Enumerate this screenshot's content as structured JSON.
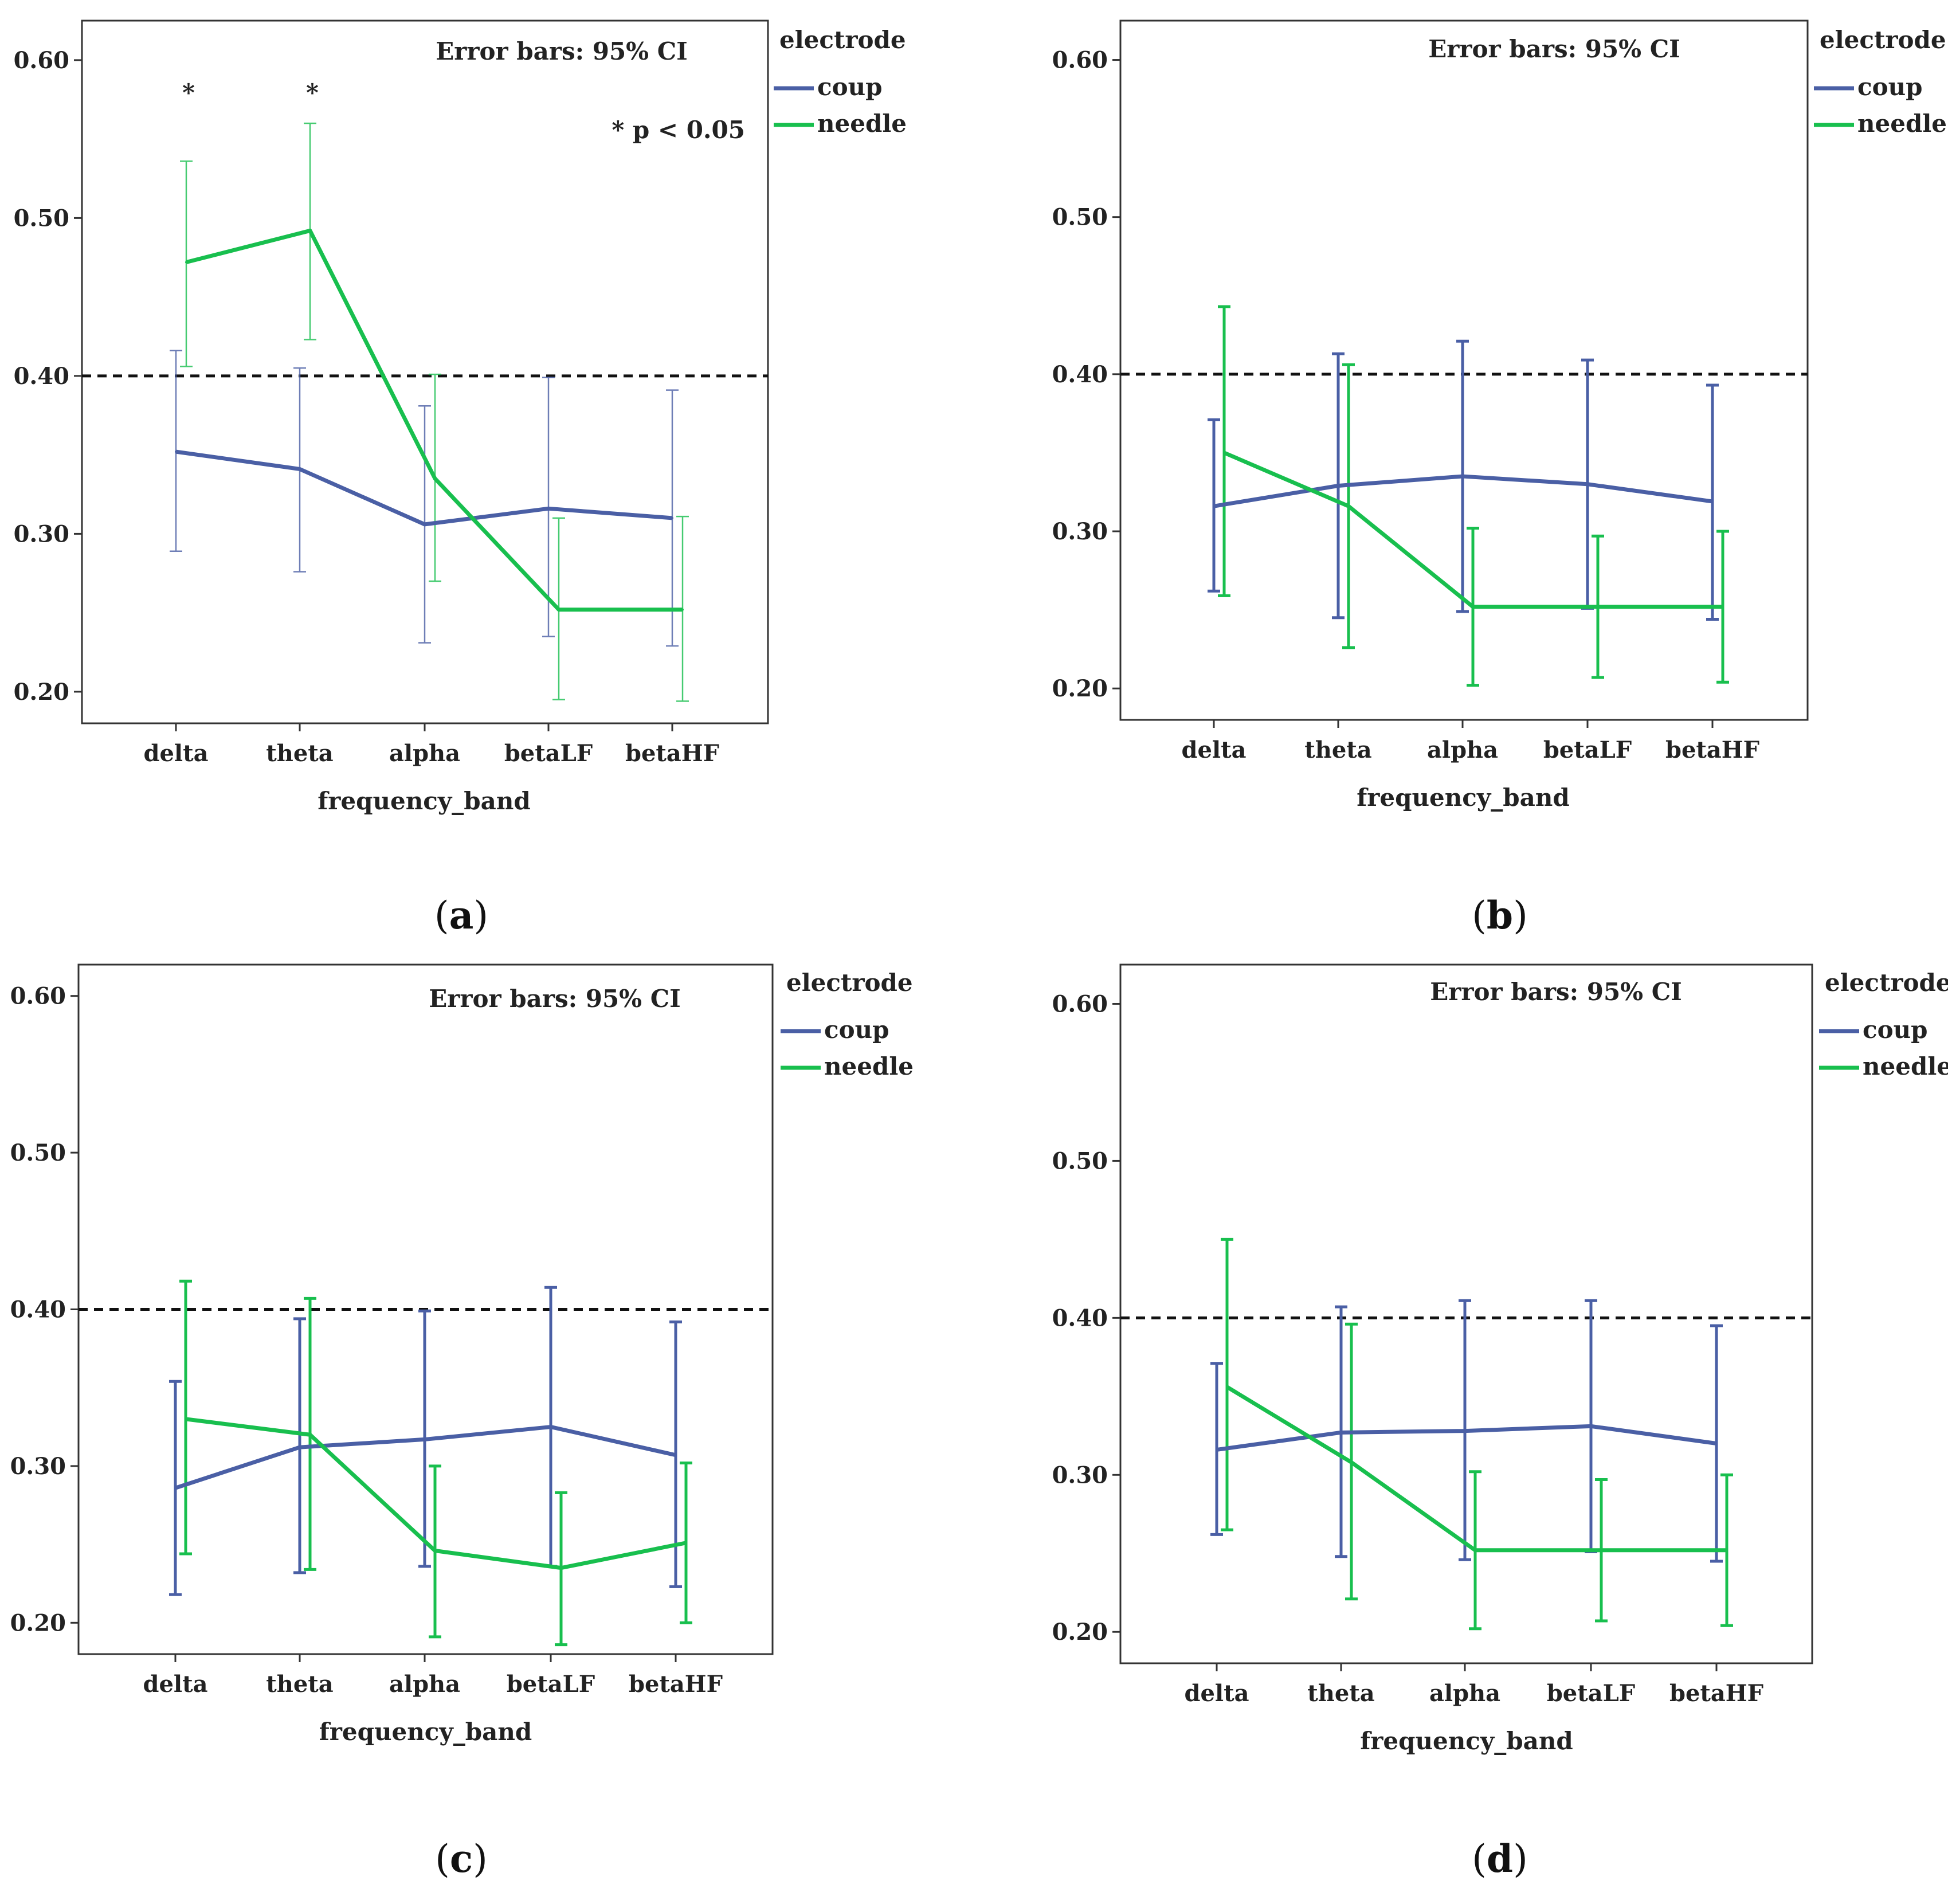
{
  "figure": {
    "colors": {
      "coup": "#4a5fa5",
      "needle": "#18bf4e",
      "reference": "#111111",
      "axis": "#333333"
    }
  },
  "chart_data": [
    {
      "panel": "a",
      "type": "line",
      "caption": {
        "open": "(",
        "letter": "a",
        "close": ")"
      },
      "error_bar_note": "Error bars: 95% CI",
      "significance_note": "* p < 0.05",
      "significance_mark": "*",
      "significant_categories": [
        "delta",
        "theta"
      ],
      "xlabel": "frequency_band",
      "ylabel": "",
      "categories": [
        "delta",
        "theta",
        "alpha",
        "betaLF",
        "betaHF"
      ],
      "yticks": [
        "0.20",
        "0.30",
        "0.40",
        "0.50",
        "0.60"
      ],
      "ylim": [
        0.18,
        0.625
      ],
      "reference_line": 0.4,
      "legend": {
        "title": "electrode",
        "entries": [
          "coup",
          "needle"
        ]
      },
      "series": [
        {
          "name": "coup",
          "values": [
            0.352,
            0.341,
            0.306,
            0.316,
            0.31
          ],
          "ci_low": [
            0.289,
            0.276,
            0.231,
            0.235,
            0.229
          ],
          "ci_high": [
            0.416,
            0.405,
            0.381,
            0.399,
            0.391
          ]
        },
        {
          "name": "needle",
          "values": [
            0.472,
            0.492,
            0.335,
            0.252,
            0.252
          ],
          "ci_low": [
            0.406,
            0.423,
            0.27,
            0.195,
            0.194
          ],
          "ci_high": [
            0.536,
            0.56,
            0.401,
            0.31,
            0.311
          ]
        }
      ]
    },
    {
      "panel": "b",
      "type": "line",
      "caption": {
        "open": "(",
        "letter": "b",
        "close": ")"
      },
      "error_bar_note": "Error bars: 95% CI",
      "xlabel": "frequency_band",
      "ylabel": "",
      "categories": [
        "delta",
        "theta",
        "alpha",
        "betaLF",
        "betaHF"
      ],
      "yticks": [
        "0.20",
        "0.30",
        "0.40",
        "0.50",
        "0.60"
      ],
      "ylim": [
        0.18,
        0.625
      ],
      "reference_line": 0.4,
      "legend": {
        "title": "electrode",
        "entries": [
          "coup",
          "needle"
        ]
      },
      "series": [
        {
          "name": "coup",
          "values": [
            0.316,
            0.329,
            0.335,
            0.33,
            0.319
          ],
          "ci_low": [
            0.262,
            0.245,
            0.249,
            0.251,
            0.244
          ],
          "ci_high": [
            0.371,
            0.413,
            0.421,
            0.409,
            0.393
          ]
        },
        {
          "name": "needle",
          "values": [
            0.35,
            0.316,
            0.252,
            0.252,
            0.252
          ],
          "ci_low": [
            0.259,
            0.226,
            0.202,
            0.207,
            0.204
          ],
          "ci_high": [
            0.443,
            0.406,
            0.302,
            0.297,
            0.3
          ]
        }
      ]
    },
    {
      "panel": "c",
      "type": "line",
      "caption": {
        "open": "(",
        "letter": "c",
        "close": ")"
      },
      "error_bar_note": "Error bars: 95% CI",
      "xlabel": "frequency_band",
      "ylabel": "",
      "categories": [
        "delta",
        "theta",
        "alpha",
        "betaLF",
        "betaHF"
      ],
      "yticks": [
        "0.20",
        "0.30",
        "0.40",
        "0.50",
        "0.60"
      ],
      "ylim": [
        0.18,
        0.62
      ],
      "reference_line": 0.4,
      "legend": {
        "title": "electrode",
        "entries": [
          "coup",
          "needle"
        ]
      },
      "series": [
        {
          "name": "coup",
          "values": [
            0.286,
            0.312,
            0.317,
            0.325,
            0.307
          ],
          "ci_low": [
            0.218,
            0.232,
            0.236,
            0.236,
            0.223
          ],
          "ci_high": [
            0.354,
            0.394,
            0.399,
            0.414,
            0.392
          ]
        },
        {
          "name": "needle",
          "values": [
            0.33,
            0.32,
            0.246,
            0.235,
            0.251
          ],
          "ci_low": [
            0.244,
            0.234,
            0.191,
            0.186,
            0.2
          ],
          "ci_high": [
            0.418,
            0.407,
            0.3,
            0.283,
            0.302
          ]
        }
      ]
    },
    {
      "panel": "d",
      "type": "line",
      "caption": {
        "open": "(",
        "letter": "d",
        "close": ")"
      },
      "error_bar_note": "Error bars: 95% CI",
      "xlabel": "frequency_band",
      "ylabel": "",
      "categories": [
        "delta",
        "theta",
        "alpha",
        "betaLF",
        "betaHF"
      ],
      "yticks": [
        "0.20",
        "0.30",
        "0.40",
        "0.50",
        "0.60"
      ],
      "ylim": [
        0.18,
        0.625
      ],
      "reference_line": 0.4,
      "legend": {
        "title": "electrode",
        "entries": [
          "coup",
          "needle"
        ]
      },
      "series": [
        {
          "name": "coup",
          "values": [
            0.316,
            0.327,
            0.328,
            0.331,
            0.32
          ],
          "ci_low": [
            0.262,
            0.248,
            0.246,
            0.251,
            0.245
          ],
          "ci_high": [
            0.371,
            0.407,
            0.411,
            0.411,
            0.395
          ]
        },
        {
          "name": "needle",
          "values": [
            0.356,
            0.308,
            0.252,
            0.252,
            0.252
          ],
          "ci_low": [
            0.265,
            0.221,
            0.202,
            0.207,
            0.204
          ],
          "ci_high": [
            0.45,
            0.396,
            0.302,
            0.297,
            0.3
          ]
        }
      ]
    }
  ]
}
